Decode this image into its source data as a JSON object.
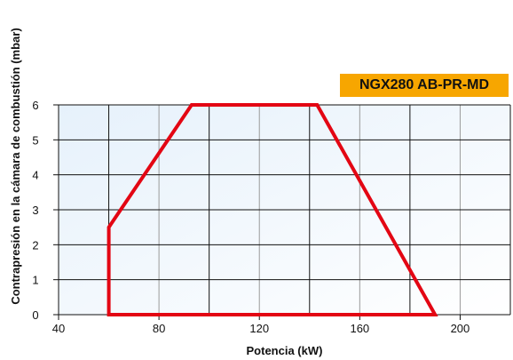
{
  "chart_data": {
    "type": "area",
    "badge": "NGX280 AB-PR-MD",
    "xlabel": "Potencia (kW)",
    "ylabel": "Contrapresión en la cámara de combustión (mbar)",
    "xlim": [
      40,
      220
    ],
    "ylim": [
      0,
      6
    ],
    "xticks": [
      40,
      80,
      120,
      160,
      200
    ],
    "yticks": [
      0,
      1,
      2,
      3,
      4,
      5,
      6
    ],
    "grid": true,
    "background_colors": [
      "#e6f1fb",
      "#ffffff"
    ],
    "line_color": "#e30613",
    "series": [
      {
        "x": [
          60,
          60,
          93,
          143,
          190,
          60
        ],
        "y": [
          0,
          2.5,
          6,
          6,
          0,
          0
        ]
      }
    ]
  }
}
